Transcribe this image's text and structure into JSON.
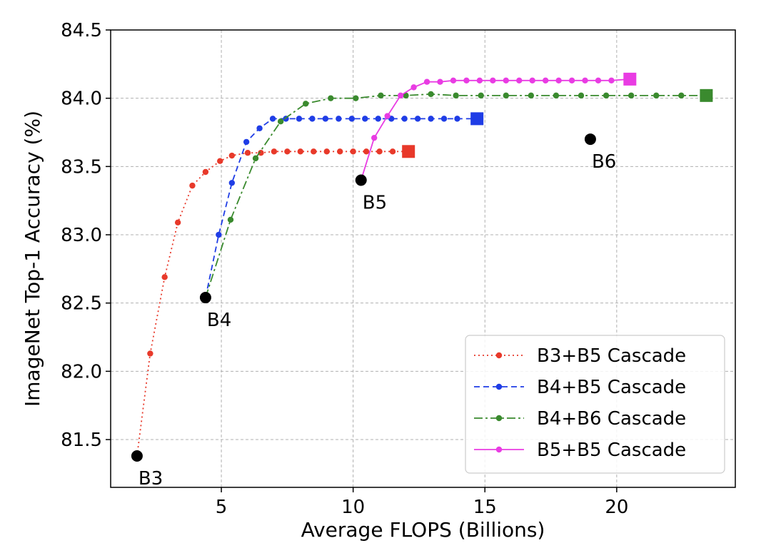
{
  "chart_data": {
    "type": "line",
    "title": "",
    "xlabel": "Average FLOPS (Billions)",
    "ylabel": "ImageNet Top-1 Accuracy (%)",
    "xlim": [
      0.8,
      24.5
    ],
    "ylim": [
      81.15,
      84.5
    ],
    "xticks": [
      5,
      10,
      15,
      20
    ],
    "xtick_labels": [
      "5",
      "10",
      "15",
      "20"
    ],
    "yticks": [
      81.5,
      82.0,
      82.5,
      83.0,
      83.5,
      84.0,
      84.5
    ],
    "ytick_labels": [
      "81.5",
      "82.0",
      "82.5",
      "83.0",
      "83.5",
      "84.0",
      "84.5"
    ],
    "grid": true,
    "legend_position": "bottom-right",
    "series": [
      {
        "name": "B3+B5 Cascade",
        "color": "#e8392a",
        "line_style": "dotted",
        "end_marker": "square",
        "x": [
          1.8,
          2.3,
          2.85,
          3.35,
          3.9,
          4.4,
          4.95,
          5.4,
          6.0,
          6.5,
          7.0,
          7.5,
          8.0,
          8.5,
          9.0,
          9.5,
          10.0,
          10.5,
          11.0,
          11.5,
          12.1
        ],
        "y": [
          81.38,
          82.13,
          82.69,
          83.09,
          83.36,
          83.46,
          83.54,
          83.58,
          83.6,
          83.6,
          83.61,
          83.61,
          83.61,
          83.61,
          83.61,
          83.61,
          83.61,
          83.61,
          83.61,
          83.61,
          83.61
        ]
      },
      {
        "name": "B4+B5 Cascade",
        "color": "#1f3de6",
        "line_style": "dashed",
        "end_marker": "square",
        "x": [
          4.4,
          4.9,
          5.4,
          5.95,
          6.45,
          6.95,
          7.45,
          7.95,
          8.45,
          8.95,
          9.45,
          9.95,
          10.45,
          10.95,
          11.45,
          11.95,
          12.45,
          12.95,
          13.45,
          13.95,
          14.7
        ],
        "y": [
          82.54,
          83.0,
          83.38,
          83.68,
          83.78,
          83.85,
          83.85,
          83.85,
          83.85,
          83.85,
          83.85,
          83.85,
          83.85,
          83.85,
          83.85,
          83.85,
          83.85,
          83.85,
          83.85,
          83.85,
          83.85
        ]
      },
      {
        "name": "B4+B6 Cascade",
        "color": "#3a8a2e",
        "line_style": "dashdot",
        "end_marker": "square",
        "x": [
          4.4,
          5.35,
          6.3,
          7.25,
          8.2,
          9.15,
          10.1,
          11.05,
          12.0,
          12.95,
          13.9,
          14.85,
          15.8,
          16.75,
          17.7,
          18.65,
          19.6,
          20.55,
          21.5,
          22.45,
          23.4
        ],
        "y": [
          82.54,
          83.11,
          83.56,
          83.83,
          83.96,
          84.0,
          84.0,
          84.02,
          84.02,
          84.03,
          84.02,
          84.02,
          84.02,
          84.02,
          84.02,
          84.02,
          84.02,
          84.02,
          84.02,
          84.02,
          84.02
        ]
      },
      {
        "name": "B5+B5 Cascade",
        "color": "#e93ce3",
        "line_style": "solid",
        "end_marker": "square",
        "x": [
          10.3,
          10.8,
          11.3,
          11.8,
          12.3,
          12.8,
          13.3,
          13.8,
          14.3,
          14.8,
          15.3,
          15.8,
          16.3,
          16.8,
          17.3,
          17.8,
          18.3,
          18.8,
          19.3,
          19.8,
          20.5
        ],
        "y": [
          83.4,
          83.71,
          83.87,
          84.02,
          84.08,
          84.12,
          84.12,
          84.13,
          84.13,
          84.13,
          84.13,
          84.13,
          84.13,
          84.13,
          84.13,
          84.13,
          84.13,
          84.13,
          84.13,
          84.13,
          84.14
        ]
      }
    ],
    "single_models": [
      {
        "label": "B3",
        "x": 1.8,
        "y": 81.38,
        "color": "#000000"
      },
      {
        "label": "B4",
        "x": 4.4,
        "y": 82.54,
        "color": "#000000"
      },
      {
        "label": "B5",
        "x": 10.3,
        "y": 83.4,
        "color": "#000000"
      },
      {
        "label": "B6",
        "x": 19.0,
        "y": 83.7,
        "color": "#000000"
      }
    ]
  }
}
